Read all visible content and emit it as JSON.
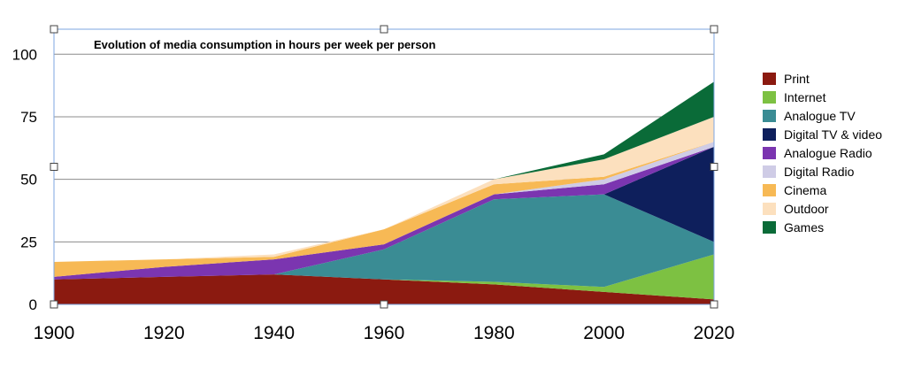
{
  "chart_data": {
    "type": "area",
    "stacked": true,
    "title": "Evolution of  media consumption in hours per week per person",
    "x": [
      1900,
      1920,
      1940,
      1960,
      1980,
      2000,
      2020
    ],
    "x_ticks": [
      "1900",
      "1920",
      "1940",
      "1960",
      "1980",
      "2000",
      "2020"
    ],
    "y_ticks": [
      "0",
      "25",
      "50",
      "75",
      "100"
    ],
    "ylim": [
      0,
      110
    ],
    "grid": true,
    "legend_position": "right",
    "series": [
      {
        "name": "Print",
        "color": "#8B1A10",
        "values": [
          10,
          11,
          12,
          10,
          8,
          5,
          2
        ]
      },
      {
        "name": "Internet",
        "color": "#7DC142",
        "values": [
          0,
          0,
          0,
          0,
          1,
          2,
          18
        ]
      },
      {
        "name": "Analogue TV",
        "color": "#3A8C94",
        "values": [
          0,
          0,
          0,
          12,
          33,
          37,
          5
        ]
      },
      {
        "name": "Digital TV & video",
        "color": "#0E1F5C",
        "values": [
          0,
          0,
          0,
          0,
          0,
          0,
          38
        ]
      },
      {
        "name": "Analogue Radio",
        "color": "#7B35B0",
        "values": [
          1,
          4,
          6,
          2,
          2,
          4,
          0
        ]
      },
      {
        "name": "Digital Radio",
        "color": "#CFCCE6",
        "values": [
          0,
          0,
          0,
          0,
          0,
          2,
          2
        ]
      },
      {
        "name": "Cinema",
        "color": "#F7B955",
        "values": [
          6,
          3,
          1,
          6,
          4,
          1,
          0
        ]
      },
      {
        "name": "Outdoor",
        "color": "#FCE0BE",
        "values": [
          0,
          0,
          1,
          0,
          2,
          7,
          10
        ]
      },
      {
        "name": "Games",
        "color": "#0A6B38",
        "values": [
          0,
          0,
          0,
          0,
          0,
          2,
          14
        ]
      }
    ]
  }
}
